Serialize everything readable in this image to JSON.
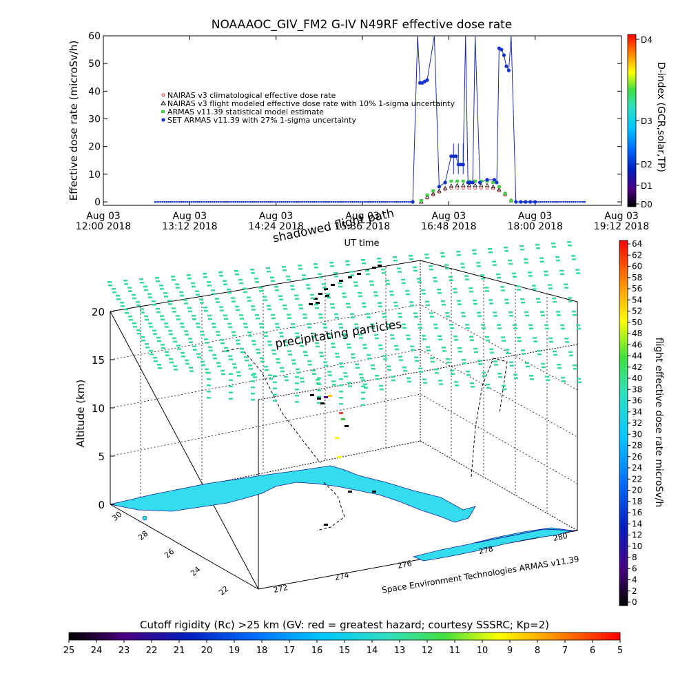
{
  "title": "NOAAAOC_GIV_FM2 G-IV   N49RF  effective dose rate",
  "colors": {
    "nairas_clim": "#e02020",
    "nairas_flight": "#000000",
    "armas_model": "#40d040",
    "set_armas": "#1030d0",
    "line": "#1a2a9a",
    "ocean": "#ffffff",
    "land": "#33ddee",
    "coast": "#1020a0",
    "grid": "#000000"
  },
  "chart_data": [
    {
      "type": "line",
      "name": "timeseries",
      "ylabel": "Effective dose rate (microSv/h)",
      "xlabel": "UT time",
      "ylim": [
        0,
        60
      ],
      "yticks": [
        0,
        10,
        20,
        30,
        40,
        50,
        60
      ],
      "xticks": [
        {
          "t": 720,
          "label1": "Aug 03",
          "label2": "12:00 2018"
        },
        {
          "t": 792,
          "label1": "Aug 03",
          "label2": "13:12 2018"
        },
        {
          "t": 864,
          "label1": "Aug 03",
          "label2": "14:24 2018"
        },
        {
          "t": 936,
          "label1": "Aug 03",
          "label2": "15:36 2018"
        },
        {
          "t": 1008,
          "label1": "Aug 03",
          "label2": "16:48 2018"
        },
        {
          "t": 1080,
          "label1": "Aug 03",
          "label2": "18:00 2018"
        },
        {
          "t": 1152,
          "label1": "Aug 03",
          "label2": "19:12 2018"
        }
      ],
      "xlim": [
        720,
        1152
      ],
      "legend": [
        "NAIRAS v3 climatological effective dose rate",
        "NAIRAS v3 flight modeled effective dose rate with 10% 1-sigma uncertainty",
        "ARMAS v11.39 statistical model estimate",
        "SET ARMAS v11.39 with 27% 1-sigma uncertainty"
      ],
      "legend_position": "top-left",
      "baseline_range": [
        763,
        1122
      ],
      "series": [
        {
          "name": "NAIRAS v3 climatological effective dose rate",
          "x": [
            985,
            990,
            995,
            1000,
            1005,
            1010,
            1015,
            1020,
            1025,
            1030,
            1035,
            1040,
            1045,
            1050,
            1055,
            1060
          ],
          "y": [
            0,
            1.5,
            2.5,
            3.5,
            4.5,
            5,
            5,
            5,
            5,
            5,
            5,
            5,
            4.8,
            4,
            2.5,
            0.5
          ]
        },
        {
          "name": "NAIRAS v3 flight modeled effective dose rate with 10% 1-sigma uncertainty",
          "x": [
            985,
            990,
            995,
            1000,
            1005,
            1010,
            1015,
            1020,
            1025,
            1030,
            1035,
            1040,
            1045,
            1050,
            1055,
            1060
          ],
          "y": [
            0,
            1.8,
            3,
            4,
            5,
            5.8,
            6,
            6,
            6,
            6,
            6,
            6,
            5.5,
            4.5,
            3,
            0.5
          ]
        },
        {
          "name": "ARMAS v11.39 statistical model estimate",
          "x": [
            985,
            990,
            995,
            1000,
            1005,
            1010,
            1015,
            1020,
            1025,
            1030,
            1035,
            1040,
            1045,
            1050,
            1055,
            1060
          ],
          "y": [
            0.5,
            2.5,
            4,
            5.5,
            7,
            7.5,
            7.5,
            7.5,
            7.5,
            7.5,
            7.5,
            7.5,
            7,
            5.5,
            3,
            0.5
          ]
        },
        {
          "name": "SET ARMAS v11.39 with 27% 1-sigma uncertainty",
          "x": [
            978,
            982,
            984,
            986,
            988,
            990,
            996,
            1000,
            1005,
            1010,
            1012,
            1014,
            1016,
            1018,
            1020,
            1022,
            1024,
            1026,
            1028,
            1030,
            1034,
            1040,
            1046,
            1048,
            1050,
            1052,
            1054,
            1056,
            1058,
            1060,
            1064,
            1068,
            1072,
            1076,
            1080
          ],
          "y": [
            0,
            65,
            43,
            43,
            43.5,
            44,
            65,
            5.5,
            7,
            16.5,
            16.5,
            16.5,
            13.5,
            13.5,
            13.5,
            65,
            7,
            7,
            7,
            65,
            7,
            8,
            8,
            7,
            55.5,
            55,
            53,
            49,
            47.5,
            65,
            0,
            0,
            0,
            0,
            0
          ]
        }
      ]
    },
    {
      "type": "colorbar",
      "name": "d-index",
      "label": "D-index (GCR,solar,TP)",
      "ticks": [
        "D0",
        "D1",
        "D2",
        "D3",
        "D4"
      ]
    },
    {
      "type": "scatter",
      "name": "3d-flight-map",
      "ylabel": "Altitude (km)",
      "zticks": [
        0,
        5,
        10,
        15,
        20
      ],
      "lat_ticks": [
        30,
        28,
        26,
        24,
        22
      ],
      "lon_ticks": [
        272,
        274,
        276,
        278,
        280
      ],
      "annotations": [
        "shadowed flight path",
        "precipitating particles"
      ],
      "credit": "Space Environment Technologies ARMAS v11.39"
    },
    {
      "type": "colorbar",
      "name": "dose-colorbar",
      "label": "flight effective dose rate microSv/h",
      "ticks": [
        64,
        62,
        60,
        58,
        56,
        54,
        52,
        50,
        48,
        46,
        44,
        42,
        40,
        38,
        36,
        34,
        32,
        30,
        28,
        26,
        24,
        22,
        20,
        18,
        16,
        14,
        12,
        10,
        8,
        6,
        4,
        2,
        0
      ]
    },
    {
      "type": "colorbar",
      "name": "cutoff-colorbar",
      "label": "Cutoff rigidity (Rc) >25 km (GV: red = greatest hazard; courtesy SSSRC; Kp=2)",
      "ticks": [
        25,
        24,
        23,
        22,
        21,
        20,
        19,
        18,
        17,
        16,
        15,
        14,
        13,
        12,
        11,
        10,
        9,
        8,
        7,
        6,
        5
      ]
    }
  ]
}
